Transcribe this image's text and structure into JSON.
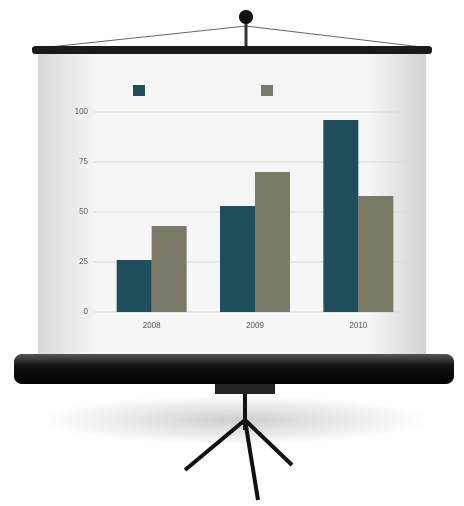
{
  "chart_data": {
    "type": "bar",
    "categories": [
      "2008",
      "2009",
      "2010"
    ],
    "series": [
      {
        "color": "#1e4f5b",
        "values": [
          26,
          53,
          96
        ]
      },
      {
        "color": "#7b7a69",
        "values": [
          43,
          70,
          58
        ]
      }
    ],
    "ylim": [
      0,
      100
    ],
    "yticks": [
      0,
      25,
      50,
      75,
      100
    ],
    "grid": true
  }
}
